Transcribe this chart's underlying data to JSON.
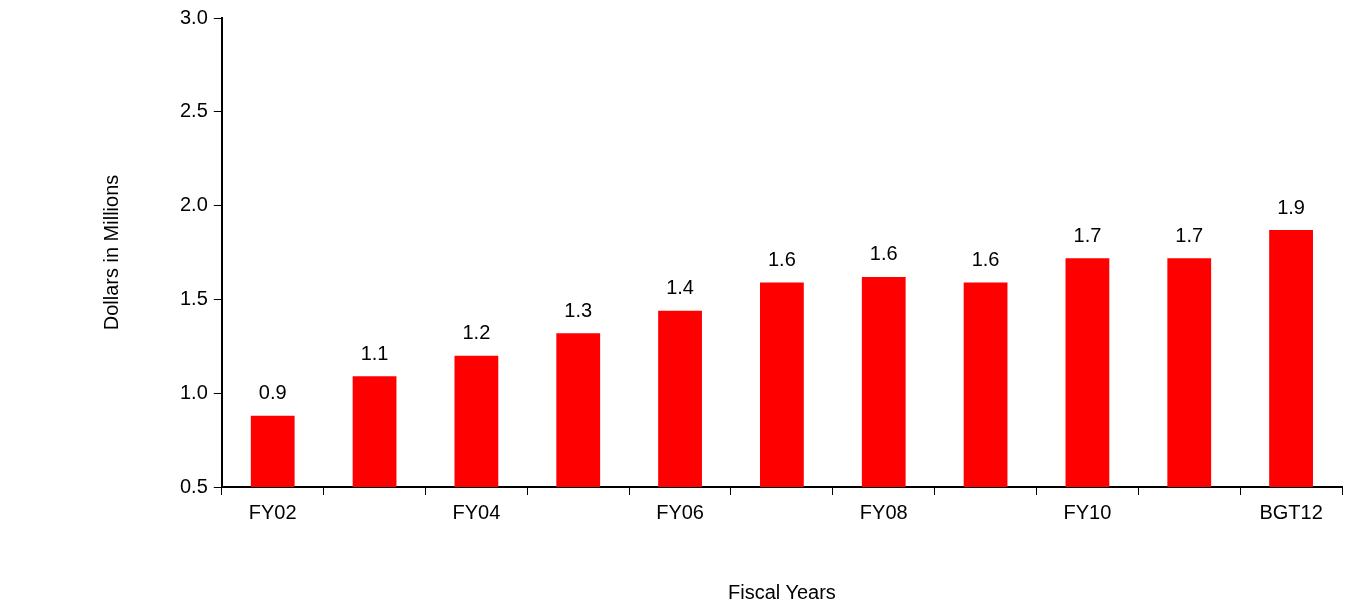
{
  "chart_data": {
    "type": "bar",
    "xlabel": "Fiscal Years",
    "ylabel": "Dollars in Millions",
    "categories": [
      "FY02",
      null,
      "FY04",
      null,
      "FY06",
      null,
      "FY08",
      null,
      "FY10",
      null,
      "BGT12"
    ],
    "values": [
      0.88,
      1.09,
      1.2,
      1.32,
      1.44,
      1.59,
      1.62,
      1.59,
      1.72,
      1.72,
      1.87
    ],
    "value_labels": [
      "0.9",
      "1.1",
      "1.2",
      "1.3",
      "1.4",
      "1.6",
      "1.6",
      "1.6",
      "1.7",
      "1.7",
      "1.9"
    ],
    "color": "#ff0000",
    "ylim": [
      0.5,
      3.0
    ],
    "yticks": [
      0.5,
      {
        "value": 1,
        "label": "1.0"
      },
      1.5,
      {
        "value": 2,
        "label": "2.0"
      },
      2.5,
      {
        "value": 3,
        "label": "3.0"
      }
    ],
    "grid": false,
    "legend": false
  }
}
